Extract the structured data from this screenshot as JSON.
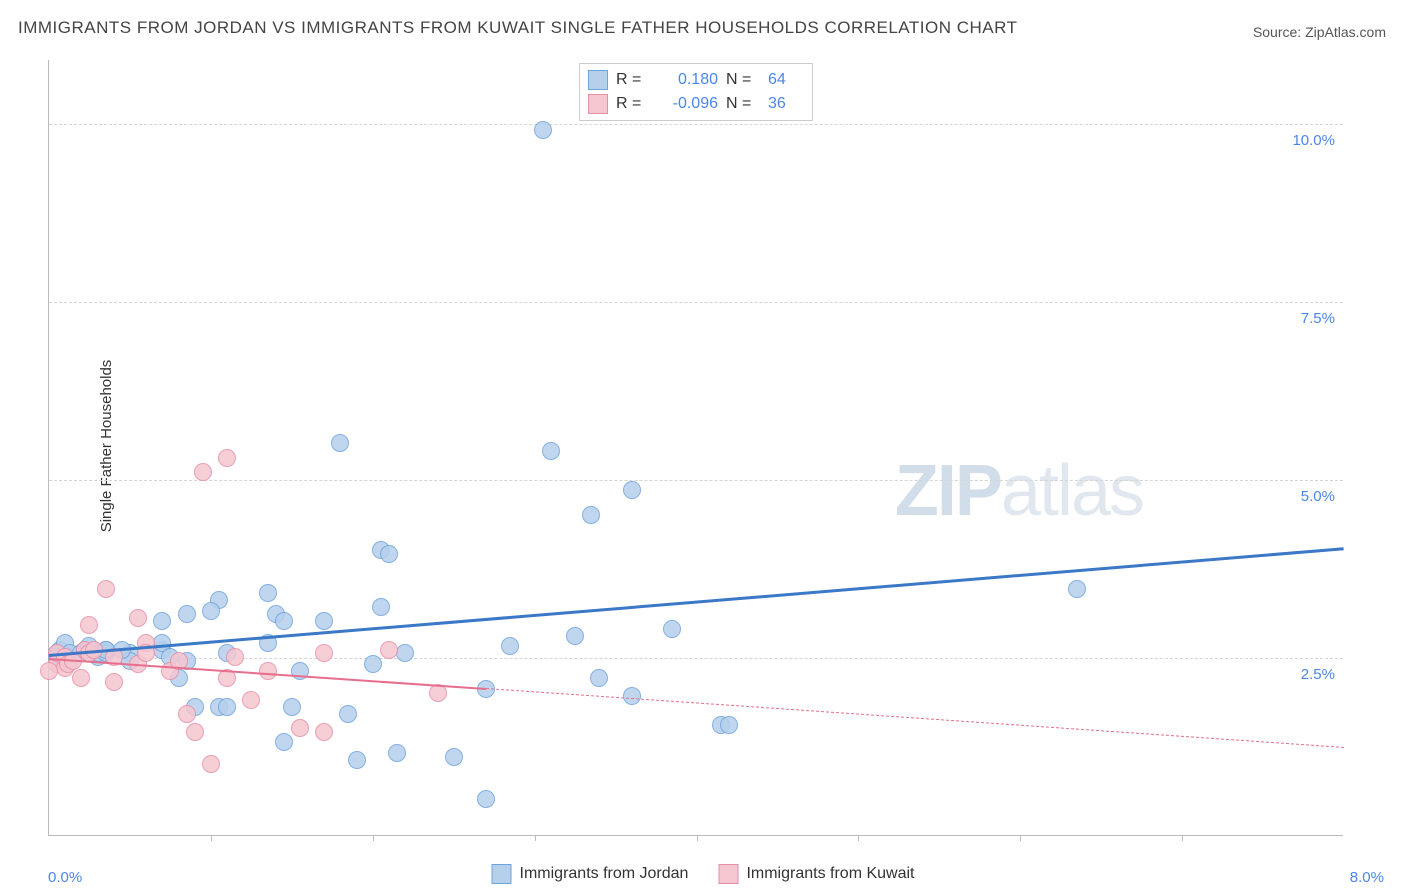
{
  "title": "IMMIGRANTS FROM JORDAN VS IMMIGRANTS FROM KUWAIT SINGLE FATHER HOUSEHOLDS CORRELATION CHART",
  "source": "Source: ZipAtlas.com",
  "y_axis_label": "Single Father Households",
  "watermark_bold": "ZIP",
  "watermark_light": "atlas",
  "chart": {
    "type": "scatter",
    "xlim": [
      0,
      8.0
    ],
    "ylim": [
      0,
      10.9
    ],
    "x_tick_positions": [
      1.0,
      2.0,
      3.0,
      4.0,
      5.0,
      6.0,
      7.0
    ],
    "x_tick_left_label": "0.0%",
    "x_tick_right_label": "8.0%",
    "y_ticks": [
      {
        "value": 2.5,
        "label": "2.5%"
      },
      {
        "value": 5.0,
        "label": "5.0%"
      },
      {
        "value": 7.5,
        "label": "7.5%"
      },
      {
        "value": 10.0,
        "label": "10.0%"
      }
    ],
    "background_color": "#ffffff",
    "grid_color": "#d5d5d5",
    "axis_color": "#bbbbbb",
    "marker_radius": 9,
    "series": [
      {
        "name": "Immigrants from Jordan",
        "fill_color": "#b6d0ec",
        "stroke_color": "#6fa3dd",
        "R": "0.180",
        "N": "64",
        "trend": {
          "x1": 0,
          "y1": 2.55,
          "x2": 8.0,
          "y2": 4.05,
          "solid_until_x": 8.0,
          "color": "#3b78c7",
          "width": 3
        },
        "points": [
          [
            0.05,
            2.55
          ],
          [
            0.07,
            2.6
          ],
          [
            0.05,
            2.5
          ],
          [
            0.1,
            2.45
          ],
          [
            0.1,
            2.7
          ],
          [
            0.12,
            2.5
          ],
          [
            0.13,
            2.55
          ],
          [
            0.2,
            2.55
          ],
          [
            0.22,
            2.6
          ],
          [
            0.25,
            2.65
          ],
          [
            0.3,
            2.5
          ],
          [
            0.3,
            2.55
          ],
          [
            0.35,
            2.6
          ],
          [
            0.35,
            2.55
          ],
          [
            0.35,
            2.6
          ],
          [
            0.5,
            2.55
          ],
          [
            0.5,
            2.45
          ],
          [
            0.45,
            2.6
          ],
          [
            0.7,
            2.6
          ],
          [
            0.7,
            2.7
          ],
          [
            0.7,
            3.0
          ],
          [
            0.75,
            2.5
          ],
          [
            0.8,
            2.2
          ],
          [
            0.85,
            3.1
          ],
          [
            0.85,
            2.45
          ],
          [
            0.9,
            1.8
          ],
          [
            1.05,
            3.3
          ],
          [
            1.05,
            1.8
          ],
          [
            1.1,
            1.8
          ],
          [
            1.1,
            2.55
          ],
          [
            1.0,
            3.15
          ],
          [
            1.35,
            2.7
          ],
          [
            1.35,
            3.4
          ],
          [
            1.4,
            3.1
          ],
          [
            1.45,
            1.3
          ],
          [
            1.45,
            3.0
          ],
          [
            1.5,
            1.8
          ],
          [
            1.55,
            2.3
          ],
          [
            1.7,
            3.0
          ],
          [
            1.8,
            5.5
          ],
          [
            1.85,
            1.7
          ],
          [
            1.9,
            1.05
          ],
          [
            2.0,
            2.4
          ],
          [
            2.05,
            3.2
          ],
          [
            2.05,
            4.0
          ],
          [
            2.1,
            3.95
          ],
          [
            2.15,
            1.15
          ],
          [
            2.2,
            2.55
          ],
          [
            2.5,
            1.1
          ],
          [
            2.7,
            0.5
          ],
          [
            2.7,
            2.05
          ],
          [
            2.85,
            2.65
          ],
          [
            3.05,
            9.9
          ],
          [
            3.1,
            5.4
          ],
          [
            3.25,
            2.8
          ],
          [
            3.35,
            4.5
          ],
          [
            3.4,
            2.2
          ],
          [
            3.6,
            4.85
          ],
          [
            3.6,
            1.95
          ],
          [
            3.85,
            2.9
          ],
          [
            4.15,
            1.55
          ],
          [
            4.2,
            1.55
          ],
          [
            6.35,
            3.45
          ]
        ]
      },
      {
        "name": "Immigrants from Kuwait",
        "fill_color": "#f4c6d0",
        "stroke_color": "#e88fa6",
        "R": "-0.096",
        "N": "36",
        "trend": {
          "x1": 0,
          "y1": 2.5,
          "x2": 8.0,
          "y2": 1.25,
          "solid_until_x": 2.7,
          "color": "#e76f8d",
          "width": 2.5
        },
        "points": [
          [
            0.05,
            2.4
          ],
          [
            0.05,
            2.55
          ],
          [
            0.1,
            2.35
          ],
          [
            0.1,
            2.5
          ],
          [
            0.12,
            2.4
          ],
          [
            0.15,
            2.45
          ],
          [
            0.2,
            2.2
          ],
          [
            0.22,
            2.6
          ],
          [
            0.25,
            2.55
          ],
          [
            0.25,
            2.95
          ],
          [
            0.28,
            2.6
          ],
          [
            0.35,
            3.45
          ],
          [
            0.4,
            2.5
          ],
          [
            0.4,
            2.15
          ],
          [
            0.55,
            3.05
          ],
          [
            0.55,
            2.4
          ],
          [
            0.6,
            2.7
          ],
          [
            0.6,
            2.55
          ],
          [
            0.75,
            2.3
          ],
          [
            0.0,
            2.3
          ],
          [
            0.8,
            2.45
          ],
          [
            0.85,
            1.7
          ],
          [
            0.9,
            1.45
          ],
          [
            0.95,
            5.1
          ],
          [
            1.0,
            1.0
          ],
          [
            1.1,
            2.2
          ],
          [
            1.1,
            5.3
          ],
          [
            1.15,
            2.5
          ],
          [
            1.25,
            1.9
          ],
          [
            1.35,
            2.3
          ],
          [
            1.55,
            1.5
          ],
          [
            1.7,
            1.45
          ],
          [
            1.7,
            2.55
          ],
          [
            2.1,
            2.6
          ],
          [
            2.4,
            2.0
          ]
        ]
      }
    ]
  },
  "legend_top": {
    "rows": [
      {
        "swatch_fill": "#b6d0ec",
        "swatch_stroke": "#6fa3dd",
        "r_label": "R =",
        "r_value": "0.180",
        "n_label": "N =",
        "n_value": "64"
      },
      {
        "swatch_fill": "#f4c6d0",
        "swatch_stroke": "#e88fa6",
        "r_label": "R =",
        "r_value": "-0.096",
        "n_label": "N =",
        "n_value": "36"
      }
    ]
  },
  "legend_bottom": {
    "items": [
      {
        "swatch_fill": "#b6d0ec",
        "swatch_stroke": "#6fa3dd",
        "label": "Immigrants from Jordan"
      },
      {
        "swatch_fill": "#f4c6d0",
        "swatch_stroke": "#e88fa6",
        "label": "Immigrants from Kuwait"
      }
    ]
  }
}
